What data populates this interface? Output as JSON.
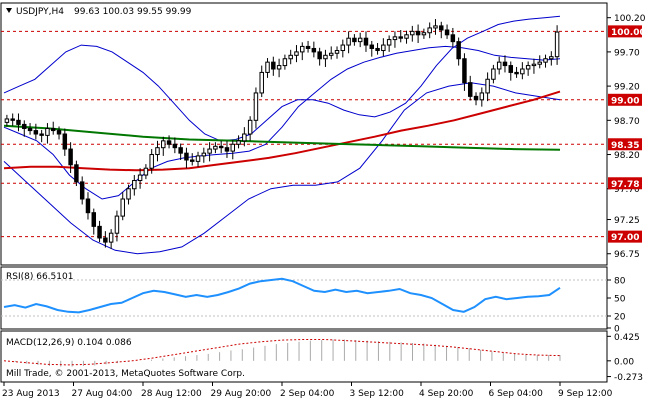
{
  "header": {
    "symbol": "USDJPY,H4",
    "ohlc": "99.63 100.03 99.55 99.99"
  },
  "footer": {
    "copyright": "Mill Trade, © 2001-2013, MetaQuotes Software Corp."
  },
  "colors": {
    "background": "#ffffff",
    "grid": "#c0c0c0",
    "candle": "#000000",
    "bollinger": "#0000cc",
    "ma_red": "#cc0000",
    "ma_green": "#007700",
    "rsi": "#1e90ff",
    "level_line": "#cc0000",
    "level_label_bg": "#cc0000",
    "macd_hist": "#aaaaaa",
    "macd_signal": "#cc0000"
  },
  "chart_data": [
    {
      "type": "candlestick",
      "title": "USDJPY,H4",
      "ylim": [
        96.6,
        100.4
      ],
      "y_ticks": [
        "100.20",
        "99.70",
        "99.20",
        "98.70",
        "98.20",
        "97.70",
        "97.25",
        "96.75"
      ],
      "y_tick_values": [
        100.2,
        99.7,
        99.2,
        98.7,
        98.2,
        97.7,
        97.25,
        96.75
      ],
      "x_ticks": [
        "23 Aug 2013",
        "27 Aug 04:00",
        "28 Aug 12:00",
        "29 Aug 20:00",
        "2 Sep 04:00",
        "3 Sep 12:00",
        "4 Sep 20:00",
        "6 Sep 04:00",
        "9 Sep 12:00"
      ],
      "x_tick_index": [
        0,
        12,
        24,
        36,
        48,
        60,
        72,
        84,
        96
      ],
      "levels": [
        {
          "label": "100.00",
          "value": 100.0
        },
        {
          "label": "99.00",
          "value": 99.0
        },
        {
          "label": "98.35",
          "value": 98.35
        },
        {
          "label": "97.78",
          "value": 97.78
        },
        {
          "label": "97.00",
          "value": 97.0
        }
      ],
      "closes": [
        98.72,
        98.7,
        98.64,
        98.58,
        98.55,
        98.5,
        98.48,
        98.58,
        98.55,
        98.5,
        98.28,
        98.05,
        97.8,
        97.55,
        97.35,
        97.15,
        96.98,
        96.92,
        97.05,
        97.3,
        97.55,
        97.7,
        97.82,
        97.9,
        98.0,
        98.2,
        98.3,
        98.4,
        98.35,
        98.3,
        98.22,
        98.12,
        98.1,
        98.18,
        98.22,
        98.28,
        98.32,
        98.3,
        98.25,
        98.35,
        98.4,
        98.5,
        98.7,
        99.1,
        99.4,
        99.55,
        99.45,
        99.5,
        99.6,
        99.65,
        99.7,
        99.78,
        99.75,
        99.7,
        99.6,
        99.65,
        99.68,
        99.72,
        99.8,
        99.9,
        99.85,
        99.9,
        99.8,
        99.75,
        99.72,
        99.8,
        99.88,
        99.92,
        99.9,
        99.95,
        100.0,
        99.95,
        99.98,
        100.05,
        100.08,
        100.02,
        99.95,
        99.85,
        99.6,
        99.25,
        99.05,
        99.0,
        99.1,
        99.3,
        99.45,
        99.55,
        99.5,
        99.4,
        99.38,
        99.45,
        99.5,
        99.52,
        99.55,
        99.6,
        99.63,
        99.99
      ],
      "series": [
        {
          "name": "Bollinger Upper",
          "values": [
            99.1,
            99.2,
            99.3,
            99.5,
            99.7,
            99.8,
            99.78,
            99.7,
            99.55,
            99.4,
            99.2,
            98.95,
            98.7,
            98.5,
            98.4,
            98.42,
            98.5,
            98.7,
            98.9,
            99.0,
            99.0,
            98.95,
            98.85,
            98.78,
            98.75,
            98.82,
            98.95,
            99.2,
            99.5,
            99.75,
            99.9,
            100.0,
            100.1,
            100.15,
            100.18,
            100.2,
            100.22
          ]
        },
        {
          "name": "Bollinger Middle",
          "values": [
            98.6,
            98.5,
            98.4,
            98.2,
            97.9,
            97.7,
            97.55,
            97.6,
            97.8,
            98.0,
            98.1,
            98.15,
            98.18,
            98.2,
            98.22,
            98.25,
            98.35,
            98.6,
            98.9,
            99.1,
            99.3,
            99.45,
            99.55,
            99.62,
            99.68,
            99.72,
            99.76,
            99.78,
            99.76,
            99.72,
            99.65,
            99.62,
            99.6,
            99.58,
            99.6
          ]
        },
        {
          "name": "Bollinger Lower",
          "values": [
            98.1,
            97.8,
            97.5,
            97.2,
            96.95,
            96.8,
            96.75,
            96.78,
            96.85,
            97.05,
            97.3,
            97.55,
            97.7,
            97.75,
            97.75,
            97.8,
            98.0,
            98.4,
            98.85,
            99.1,
            99.2,
            99.25,
            99.2,
            99.1,
            99.05,
            99.0
          ]
        },
        {
          "name": "MA Red",
          "values": [
            98.0,
            98.02,
            98.02,
            98.0,
            97.98,
            97.97,
            97.98,
            98.0,
            98.05,
            98.1,
            98.15,
            98.22,
            98.3,
            98.38,
            98.46,
            98.55,
            98.62,
            98.7,
            98.8,
            98.9,
            99.0,
            99.12
          ]
        },
        {
          "name": "MA Green",
          "values": [
            98.62,
            98.58,
            98.52,
            98.46,
            98.42,
            98.4,
            98.38,
            98.36,
            98.34,
            98.32,
            98.3,
            98.28,
            98.27
          ]
        }
      ]
    },
    {
      "type": "line",
      "title": "RSI(8) 66.5101",
      "ylim": [
        0,
        100
      ],
      "y_ticks": [
        "80",
        "50",
        "20",
        "0"
      ],
      "y_tick_values": [
        80,
        50,
        20,
        0
      ],
      "series": [
        {
          "name": "RSI(8)",
          "values": [
            35,
            38,
            34,
            40,
            36,
            30,
            27,
            26,
            30,
            35,
            40,
            42,
            50,
            58,
            62,
            60,
            56,
            52,
            55,
            52,
            55,
            60,
            66,
            74,
            78,
            80,
            82,
            78,
            70,
            62,
            60,
            64,
            60,
            62,
            58,
            60,
            62,
            65,
            58,
            55,
            50,
            40,
            30,
            27,
            35,
            48,
            52,
            48,
            50,
            52,
            53,
            55,
            67
          ]
        }
      ]
    },
    {
      "type": "bar",
      "title": "MACD(12,26,9) 0.104 0.086",
      "ylim": [
        -0.35,
        0.5
      ],
      "y_ticks": [
        "0.425",
        "0.00",
        "-0.273"
      ],
      "y_tick_values": [
        0.425,
        0.0,
        -0.273
      ],
      "series": [
        {
          "name": "MACD",
          "values": [
            0.0,
            -0.02,
            -0.05,
            -0.07,
            -0.09,
            -0.1,
            -0.1,
            -0.09,
            -0.08,
            -0.06,
            -0.04,
            -0.02,
            0.0,
            0.02,
            0.04,
            0.06,
            0.08,
            0.1,
            0.12,
            0.15,
            0.18,
            0.2,
            0.23,
            0.26,
            0.29,
            0.31,
            0.33,
            0.35,
            0.36,
            0.37,
            0.37,
            0.36,
            0.35,
            0.34,
            0.33,
            0.32,
            0.31,
            0.3,
            0.28,
            0.26,
            0.24,
            0.22,
            0.19,
            0.16,
            0.14,
            0.12,
            0.11,
            0.1,
            0.1,
            0.1
          ]
        },
        {
          "name": "Signal",
          "values": [
            0.0,
            -0.03,
            -0.06,
            -0.07,
            -0.06,
            -0.03,
            0.0,
            0.05,
            0.11,
            0.17,
            0.23,
            0.29,
            0.33,
            0.36,
            0.37,
            0.37,
            0.35,
            0.33,
            0.31,
            0.29,
            0.27,
            0.24,
            0.2,
            0.16,
            0.12,
            0.1,
            0.09
          ]
        }
      ]
    }
  ]
}
